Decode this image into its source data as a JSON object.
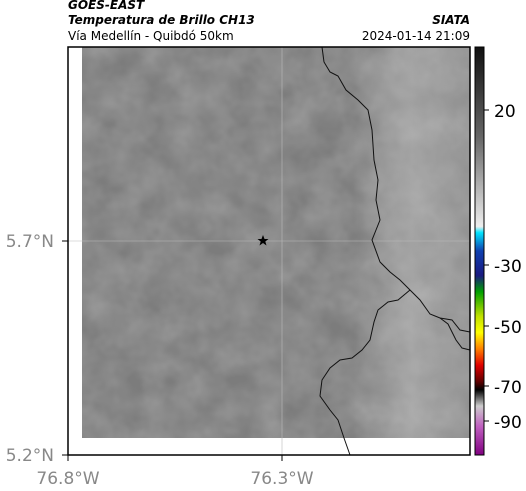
{
  "header": {
    "source": "GOES-EAST",
    "title": "Temperatura de Brillo CH13",
    "subtitle": "Vía Medellín - Quibdó 50km",
    "agency": "SIATA",
    "timestamp": "2024-01-14 21:09"
  },
  "axes": {
    "lat_labels": [
      "5.7°N",
      "5.2°N"
    ],
    "lon_labels": [
      "76.8°W",
      "76.3°W"
    ]
  },
  "colorbar": {
    "labels": [
      "20",
      "-30",
      "-50",
      "-70",
      "-90"
    ]
  }
}
